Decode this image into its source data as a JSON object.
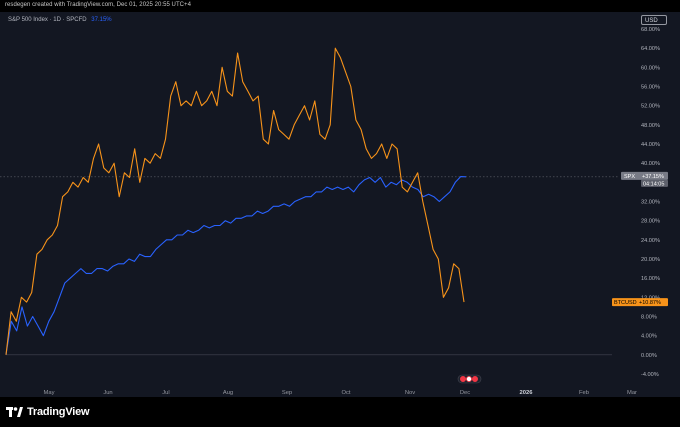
{
  "caption": "resdegen created with TradingView.com, Dec 01, 2025 20:55 UTC+4",
  "legend": {
    "symbol": "S&P 500 Index · 1D · SPCFD",
    "change": "37.15%"
  },
  "currency_button": "USD",
  "footer": {
    "brand": "TradingView"
  },
  "colors": {
    "spx": "#2962ff",
    "btc": "#f7931a",
    "background": "#131722"
  },
  "events_marker": "icons-cluster",
  "chart_data": {
    "type": "line",
    "x_unit": "trading days from start (Apr 2025 to Dec 01, 2025)",
    "x_ticks": [
      "May",
      "Jun",
      "Jul",
      "Aug",
      "Sep",
      "Oct",
      "Nov",
      "Dec",
      "2026",
      "Feb",
      "Mar"
    ],
    "y_ticks": [
      "68.00%",
      "64.00%",
      "60.00%",
      "56.00%",
      "52.00%",
      "48.00%",
      "44.00%",
      "40.00%",
      "36.00%",
      "32.00%",
      "28.00%",
      "24.00%",
      "20.00%",
      "16.00%",
      "12.00%",
      "8.00%",
      "4.00%",
      "0.00%",
      "-4.00%"
    ],
    "ylim": [
      -4,
      68
    ],
    "series": [
      {
        "name": "SPX",
        "last_label": "SPX",
        "last_value": "+37.15%",
        "sub_label": "04:14:05",
        "points": [
          [
            0,
            0
          ],
          [
            1,
            7
          ],
          [
            2,
            5
          ],
          [
            3,
            10
          ],
          [
            4,
            6
          ],
          [
            5,
            8
          ],
          [
            6,
            6
          ],
          [
            7,
            4
          ],
          [
            8,
            7
          ],
          [
            9,
            9
          ],
          [
            10,
            12
          ],
          [
            11,
            15
          ],
          [
            12,
            16
          ],
          [
            13,
            17
          ],
          [
            14,
            18
          ],
          [
            15,
            17
          ],
          [
            16,
            17
          ],
          [
            17,
            18
          ],
          [
            18,
            18
          ],
          [
            19,
            17.5
          ],
          [
            20,
            18.5
          ],
          [
            21,
            19
          ],
          [
            22,
            19
          ],
          [
            23,
            20
          ],
          [
            24,
            19.5
          ],
          [
            25,
            21
          ],
          [
            26,
            20.5
          ],
          [
            27,
            20.5
          ],
          [
            28,
            22
          ],
          [
            29,
            23
          ],
          [
            30,
            24
          ],
          [
            31,
            24
          ],
          [
            32,
            25
          ],
          [
            33,
            25
          ],
          [
            34,
            26
          ],
          [
            35,
            25.5
          ],
          [
            36,
            26
          ],
          [
            37,
            27
          ],
          [
            38,
            26.5
          ],
          [
            39,
            27
          ],
          [
            40,
            27
          ],
          [
            41,
            28
          ],
          [
            42,
            27.5
          ],
          [
            43,
            28.5
          ],
          [
            44,
            28.5
          ],
          [
            45,
            29
          ],
          [
            46,
            29
          ],
          [
            47,
            30
          ],
          [
            48,
            29.5
          ],
          [
            49,
            30
          ],
          [
            50,
            31
          ],
          [
            51,
            31
          ],
          [
            52,
            31.5
          ],
          [
            53,
            31
          ],
          [
            54,
            32
          ],
          [
            55,
            32.5
          ],
          [
            56,
            33
          ],
          [
            57,
            33
          ],
          [
            58,
            34
          ],
          [
            59,
            34
          ],
          [
            60,
            35
          ],
          [
            61,
            34.5
          ],
          [
            62,
            35
          ],
          [
            63,
            34.5
          ],
          [
            64,
            35
          ],
          [
            65,
            34
          ],
          [
            66,
            35.5
          ],
          [
            67,
            36.5
          ],
          [
            68,
            37
          ],
          [
            69,
            36
          ],
          [
            70,
            37
          ],
          [
            71,
            35
          ],
          [
            72,
            36
          ],
          [
            73,
            35.5
          ],
          [
            74,
            36.5
          ],
          [
            75,
            36
          ],
          [
            76,
            35
          ],
          [
            77,
            34.5
          ],
          [
            78,
            33
          ],
          [
            79,
            33.5
          ],
          [
            80,
            33
          ],
          [
            81,
            32
          ],
          [
            82,
            33
          ],
          [
            83,
            34
          ],
          [
            84,
            36
          ],
          [
            85,
            37.2
          ],
          [
            86,
            37.15
          ]
        ]
      },
      {
        "name": "BTCUSD",
        "last_label": "BTCUSD",
        "last_value": "+10.87%",
        "points": [
          [
            0,
            0
          ],
          [
            1,
            9
          ],
          [
            2,
            7
          ],
          [
            3,
            12
          ],
          [
            4,
            11
          ],
          [
            5,
            13
          ],
          [
            6,
            21
          ],
          [
            7,
            22
          ],
          [
            8,
            24
          ],
          [
            9,
            25
          ],
          [
            10,
            27
          ],
          [
            11,
            33
          ],
          [
            12,
            34
          ],
          [
            13,
            36
          ],
          [
            14,
            35
          ],
          [
            15,
            37
          ],
          [
            16,
            36
          ],
          [
            17,
            41
          ],
          [
            18,
            44
          ],
          [
            19,
            39
          ],
          [
            20,
            38
          ],
          [
            21,
            40
          ],
          [
            22,
            33
          ],
          [
            23,
            38
          ],
          [
            24,
            37
          ],
          [
            25,
            43
          ],
          [
            26,
            36
          ],
          [
            27,
            41
          ],
          [
            28,
            40
          ],
          [
            29,
            42
          ],
          [
            30,
            41
          ],
          [
            31,
            45
          ],
          [
            32,
            54
          ],
          [
            33,
            57
          ],
          [
            34,
            52
          ],
          [
            35,
            53
          ],
          [
            36,
            52
          ],
          [
            37,
            55
          ],
          [
            38,
            52
          ],
          [
            39,
            53
          ],
          [
            40,
            55
          ],
          [
            41,
            52
          ],
          [
            42,
            60
          ],
          [
            43,
            55
          ],
          [
            44,
            54
          ],
          [
            45,
            63
          ],
          [
            46,
            57
          ],
          [
            47,
            55
          ],
          [
            48,
            53
          ],
          [
            49,
            54
          ],
          [
            50,
            45
          ],
          [
            51,
            44
          ],
          [
            52,
            51
          ],
          [
            53,
            47
          ],
          [
            54,
            46
          ],
          [
            55,
            45
          ],
          [
            56,
            48
          ],
          [
            57,
            50
          ],
          [
            58,
            52
          ],
          [
            59,
            49
          ],
          [
            60,
            53
          ],
          [
            61,
            46
          ],
          [
            62,
            45
          ],
          [
            63,
            48
          ],
          [
            64,
            64
          ],
          [
            65,
            62
          ],
          [
            66,
            59
          ],
          [
            67,
            56
          ],
          [
            68,
            49
          ],
          [
            69,
            47
          ],
          [
            70,
            43
          ],
          [
            71,
            41
          ],
          [
            72,
            42
          ],
          [
            73,
            44
          ],
          [
            74,
            41
          ],
          [
            75,
            44
          ],
          [
            76,
            43
          ],
          [
            77,
            35
          ],
          [
            78,
            34
          ],
          [
            79,
            36
          ],
          [
            80,
            38
          ],
          [
            81,
            32
          ],
          [
            82,
            27
          ],
          [
            83,
            22
          ],
          [
            84,
            20
          ],
          [
            85,
            12
          ],
          [
            86,
            14
          ],
          [
            87,
            19
          ],
          [
            88,
            18
          ],
          [
            89,
            11
          ]
        ]
      }
    ],
    "xlabel": "",
    "ylabel": "",
    "grid": false,
    "legend": "top-left"
  }
}
